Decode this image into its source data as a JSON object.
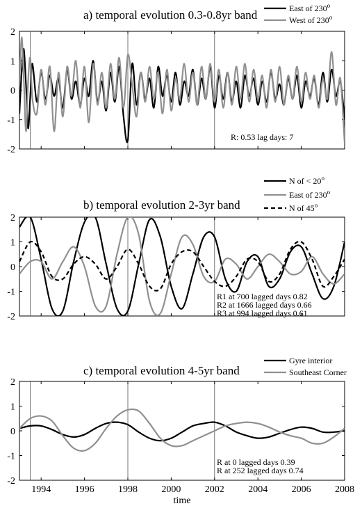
{
  "chart_data": [
    {
      "type": "line",
      "title": "a) temporal evolution 0.3-0.8yr band",
      "xlim": [
        1993,
        2008
      ],
      "ylim": [
        -2,
        2
      ],
      "yticks": [
        -2,
        -1,
        0,
        1,
        2
      ],
      "ytick_labels": [
        "-2",
        "-1",
        "0",
        "1",
        "2"
      ],
      "vlines": [
        1993.5,
        1998.0,
        2002.0
      ],
      "grid": false,
      "legend_position": "top-right",
      "series": [
        {
          "name": "East of 230",
          "name_sup": "o",
          "color": "#000000",
          "dash": "none",
          "x": [
            1993.0,
            1993.1,
            1993.2,
            1993.3,
            1993.4,
            1993.5,
            1993.6,
            1993.8,
            1994.0,
            1994.2,
            1994.4,
            1994.6,
            1994.8,
            1995.0,
            1995.2,
            1995.4,
            1995.6,
            1995.8,
            1996.0,
            1996.2,
            1996.4,
            1996.6,
            1996.8,
            1997.0,
            1997.2,
            1997.4,
            1997.6,
            1997.8,
            1998.0,
            1998.2,
            1998.4,
            1998.6,
            1998.8,
            1999.0,
            1999.2,
            1999.4,
            1999.6,
            1999.8,
            2000.0,
            2000.2,
            2000.4,
            2000.6,
            2000.8,
            2001.0,
            2001.2,
            2001.4,
            2001.6,
            2001.8,
            2002.0,
            2002.2,
            2002.4,
            2002.6,
            2002.8,
            2003.0,
            2003.2,
            2003.4,
            2003.6,
            2003.8,
            2004.0,
            2004.2,
            2004.4,
            2004.6,
            2004.8,
            2005.0,
            2005.2,
            2005.4,
            2005.6,
            2005.8,
            2006.0,
            2006.2,
            2006.4,
            2006.6,
            2006.8,
            2007.0,
            2007.2,
            2007.4,
            2007.6,
            2007.8,
            2008.0
          ],
          "y": [
            -0.8,
            0.6,
            1.4,
            0.2,
            -1.3,
            -0.2,
            0.9,
            -0.4,
            0.6,
            -0.3,
            0.5,
            -0.2,
            0.4,
            -0.6,
            0.7,
            -0.3,
            0.3,
            -0.5,
            0.4,
            -0.2,
            1.0,
            -0.4,
            0.3,
            -0.7,
            0.6,
            -0.4,
            0.8,
            -0.9,
            -1.7,
            0.9,
            -0.5,
            0.6,
            -0.3,
            0.4,
            -0.6,
            0.8,
            -0.2,
            0.5,
            -0.4,
            0.6,
            -0.5,
            0.3,
            -0.2,
            0.7,
            -0.5,
            0.4,
            -0.3,
            0.8,
            -0.6,
            0.5,
            -0.3,
            0.6,
            -0.4,
            0.3,
            -0.6,
            0.5,
            -0.2,
            0.4,
            -0.5,
            0.3,
            -0.4,
            0.6,
            -0.3,
            0.2,
            -0.5,
            0.4,
            -0.3,
            0.5,
            -0.6,
            0.3,
            -0.2,
            0.4,
            -0.5,
            0.6,
            -0.4,
            0.7,
            -0.2,
            0.3,
            -1.0
          ]
        },
        {
          "name": "West of 230",
          "name_sup": "o",
          "color": "#909090",
          "dash": "none",
          "x": [
            1993.0,
            1993.1,
            1993.2,
            1993.3,
            1993.4,
            1993.5,
            1993.6,
            1993.8,
            1994.0,
            1994.2,
            1994.4,
            1994.6,
            1994.8,
            1995.0,
            1995.2,
            1995.4,
            1995.6,
            1995.8,
            1996.0,
            1996.2,
            1996.4,
            1996.6,
            1996.8,
            1997.0,
            1997.2,
            1997.4,
            1997.6,
            1997.8,
            1998.0,
            1998.2,
            1998.4,
            1998.6,
            1998.8,
            1999.0,
            1999.2,
            1999.4,
            1999.6,
            1999.8,
            2000.0,
            2000.2,
            2000.4,
            2000.6,
            2000.8,
            2001.0,
            2001.2,
            2001.4,
            2001.6,
            2001.8,
            2002.0,
            2002.2,
            2002.4,
            2002.6,
            2002.8,
            2003.0,
            2003.2,
            2003.4,
            2003.6,
            2003.8,
            2004.0,
            2004.2,
            2004.4,
            2004.6,
            2004.8,
            2005.0,
            2005.2,
            2005.4,
            2005.6,
            2005.8,
            2006.0,
            2006.2,
            2006.4,
            2006.6,
            2006.8,
            2007.0,
            2007.2,
            2007.4,
            2007.6,
            2007.8,
            2008.0
          ],
          "y": [
            0.3,
            1.8,
            0.4,
            -1.4,
            0.3,
            1.1,
            -0.3,
            -0.8,
            0.7,
            -0.5,
            0.8,
            -1.4,
            0.6,
            -0.9,
            0.8,
            -0.2,
            1.0,
            -0.6,
            0.8,
            -1.1,
            0.9,
            -0.5,
            0.6,
            -0.6,
            0.9,
            -0.3,
            1.1,
            -0.6,
            1.2,
            0.2,
            -0.9,
            0.6,
            -0.4,
            0.8,
            -0.3,
            0.6,
            -0.8,
            0.7,
            -0.7,
            0.4,
            -0.3,
            0.9,
            -0.4,
            0.6,
            -0.5,
            0.8,
            -0.3,
            0.9,
            -0.4,
            0.7,
            -0.6,
            0.6,
            -0.5,
            0.8,
            -0.3,
            0.9,
            -0.4,
            0.7,
            -0.3,
            0.5,
            -0.6,
            0.7,
            -0.4,
            0.8,
            -0.5,
            0.5,
            -0.3,
            0.8,
            -0.4,
            0.6,
            -0.3,
            0.5,
            -0.6,
            0.4,
            -0.3,
            1.3,
            -0.5,
            0.4,
            -1.8
          ]
        }
      ],
      "annotations": [
        "R: 0.53 lag days: 7"
      ]
    },
    {
      "type": "line",
      "title": "b) temporal evolution 2-3yr band",
      "xlim": [
        1993,
        2008
      ],
      "ylim": [
        -2,
        2
      ],
      "yticks": [
        -2,
        -1,
        0,
        1,
        2
      ],
      "ytick_labels": [
        "-2",
        "-1",
        "0",
        "1",
        "2"
      ],
      "vlines": [
        1993.5,
        1998.0,
        2002.0
      ],
      "grid": false,
      "legend_position": "top-right",
      "series": [
        {
          "name": "N of < 20",
          "name_sup": "o",
          "color": "#000000",
          "dash": "none",
          "x": [
            1993.0,
            1993.5,
            1994.0,
            1994.5,
            1995.0,
            1995.5,
            1996.0,
            1996.5,
            1997.0,
            1997.5,
            1998.0,
            1998.5,
            1999.0,
            1999.5,
            2000.0,
            2000.5,
            2001.0,
            2001.5,
            2002.0,
            2002.5,
            2003.0,
            2003.5,
            2004.0,
            2004.5,
            2005.0,
            2005.5,
            2006.0,
            2006.5,
            2007.0,
            2007.5,
            2008.0
          ],
          "y": [
            1.6,
            2.0,
            0.3,
            -1.7,
            -1.8,
            0.2,
            1.8,
            2.0,
            0.1,
            -1.7,
            -1.8,
            0.1,
            1.9,
            1.2,
            -0.8,
            -1.7,
            -0.3,
            1.2,
            1.2,
            -0.5,
            -1.0,
            0.2,
            0.4,
            -0.8,
            -0.5,
            0.6,
            0.8,
            -0.3,
            -1.3,
            -0.8,
            1.0
          ]
        },
        {
          "name": "East of 230",
          "name_sup": "o",
          "color": "#909090",
          "dash": "none",
          "x": [
            1993.0,
            1993.5,
            1994.0,
            1994.5,
            1995.0,
            1995.5,
            1996.0,
            1996.5,
            1997.0,
            1997.5,
            1998.0,
            1998.5,
            1999.0,
            1999.5,
            2000.0,
            2000.5,
            2001.0,
            2001.5,
            2002.0,
            2002.5,
            2003.0,
            2003.5,
            2004.0,
            2004.5,
            2005.0,
            2005.5,
            2006.0,
            2006.5,
            2007.0,
            2007.5,
            2008.0
          ],
          "y": [
            -0.3,
            0.2,
            0.2,
            -0.5,
            0.2,
            0.8,
            0.0,
            -1.6,
            -1.6,
            0.5,
            2.0,
            1.3,
            -1.4,
            -1.9,
            -0.3,
            1.2,
            0.9,
            -0.4,
            -0.6,
            0.3,
            0.1,
            -0.5,
            0.0,
            0.5,
            0.2,
            -0.3,
            -0.2,
            0.4,
            -0.3,
            -0.7,
            -0.3
          ]
        },
        {
          "name": "N of 45",
          "name_sup": "o",
          "color": "#000000",
          "dash": "6,4",
          "x": [
            1993.0,
            1993.5,
            1994.0,
            1994.5,
            1995.0,
            1995.5,
            1996.0,
            1996.5,
            1997.0,
            1997.5,
            1998.0,
            1998.5,
            1999.0,
            1999.5,
            2000.0,
            2000.5,
            2001.0,
            2001.5,
            2002.0,
            2002.5,
            2003.0,
            2003.5,
            2004.0,
            2004.5,
            2005.0,
            2005.5,
            2006.0,
            2006.5,
            2007.0,
            2007.5,
            2008.0
          ],
          "y": [
            0.2,
            1.0,
            0.6,
            -0.4,
            -0.5,
            0.1,
            0.4,
            0.1,
            -0.5,
            0.0,
            0.7,
            0.1,
            -0.8,
            -0.9,
            0.1,
            0.6,
            0.6,
            0.0,
            -0.6,
            -0.8,
            -0.4,
            0.3,
            0.2,
            -0.6,
            -0.3,
            0.7,
            1.0,
            0.3,
            -0.8,
            -0.4,
            0.3
          ]
        }
      ],
      "annotations": [
        "R1 at 700 lagged days 0.82",
        "R2 at 1666 lagged days 0.66",
        "R3 at 994 lagged days 0.61"
      ]
    },
    {
      "type": "line",
      "title": "c) temporal evolution 4-5yr band",
      "xlim": [
        1993,
        2008
      ],
      "ylim": [
        -2,
        2
      ],
      "yticks": [
        -2,
        -1,
        0,
        1,
        2
      ],
      "ytick_labels": [
        "-2",
        "-1",
        "0",
        "1",
        "2"
      ],
      "xticks": [
        1994,
        1996,
        1998,
        2000,
        2002,
        2004,
        2006,
        2008
      ],
      "xtick_labels": [
        "1994",
        "1996",
        "1998",
        "2000",
        "2002",
        "2004",
        "2006",
        "2008"
      ],
      "xlabel": "time",
      "vlines": [
        1993.5,
        1998.0,
        2002.0
      ],
      "grid": false,
      "legend_position": "top-right",
      "series": [
        {
          "name": "Gyre interior",
          "color": "#000000",
          "dash": "none",
          "x": [
            1993.0,
            1993.5,
            1994.0,
            1994.5,
            1995.0,
            1995.5,
            1996.0,
            1996.5,
            1997.0,
            1997.5,
            1998.0,
            1998.5,
            1999.0,
            1999.5,
            2000.0,
            2000.5,
            2001.0,
            2001.5,
            2002.0,
            2002.5,
            2003.0,
            2003.5,
            2004.0,
            2004.5,
            2005.0,
            2005.5,
            2006.0,
            2006.5,
            2007.0,
            2007.5,
            2008.0
          ],
          "y": [
            0.1,
            0.2,
            0.2,
            0.05,
            -0.15,
            -0.25,
            -0.15,
            0.1,
            0.3,
            0.35,
            0.25,
            -0.05,
            -0.3,
            -0.4,
            -0.3,
            -0.05,
            0.2,
            0.3,
            0.35,
            0.2,
            -0.05,
            -0.2,
            -0.3,
            -0.25,
            -0.1,
            0.05,
            0.15,
            0.1,
            -0.05,
            -0.05,
            0.0
          ]
        },
        {
          "name": "Southeast Corner",
          "color": "#909090",
          "dash": "none",
          "x": [
            1993.0,
            1993.5,
            1994.0,
            1994.5,
            1995.0,
            1995.5,
            1996.0,
            1996.5,
            1997.0,
            1997.5,
            1998.0,
            1998.5,
            1999.0,
            1999.5,
            2000.0,
            2000.5,
            2001.0,
            2001.5,
            2002.0,
            2002.5,
            2003.0,
            2003.5,
            2004.0,
            2004.5,
            2005.0,
            2005.5,
            2006.0,
            2006.5,
            2007.0,
            2007.5,
            2008.0
          ],
          "y": [
            0.1,
            0.5,
            0.6,
            0.4,
            -0.2,
            -0.7,
            -0.8,
            -0.5,
            0.1,
            0.6,
            0.85,
            0.8,
            0.3,
            -0.3,
            -0.6,
            -0.6,
            -0.4,
            -0.2,
            0.0,
            0.2,
            0.3,
            0.35,
            0.3,
            0.15,
            -0.05,
            -0.2,
            -0.3,
            -0.5,
            -0.5,
            -0.25,
            0.1
          ]
        }
      ],
      "annotations": [
        "R at 0 lagged days 0.39",
        "R at 252 lagged days 0.74"
      ]
    }
  ]
}
